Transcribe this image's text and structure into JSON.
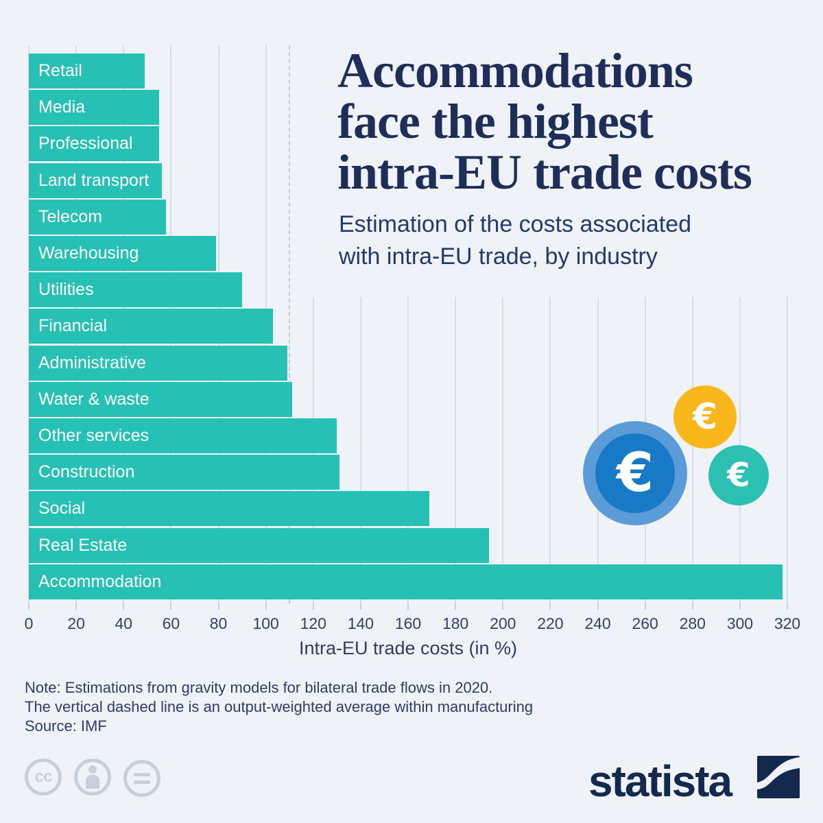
{
  "header": {
    "title": "Accommodations face the highest intra-EU trade costs",
    "title_lines": [
      "Accommodations",
      "face the highest",
      "intra-EU trade costs"
    ],
    "subtitle": "Estimation of the costs associated with intra-EU trade, by industry",
    "subtitle_lines": [
      "Estimation of the costs associated",
      "with intra-EU trade, by industry"
    ]
  },
  "chart_data": {
    "type": "bar",
    "orientation": "horizontal",
    "title": "Accommodations face the highest intra-EU trade costs",
    "subtitle": "Estimation of the costs associated with intra-EU trade, by industry",
    "categories": [
      "Retail",
      "Media",
      "Professional",
      "Land transport",
      "Telecom",
      "Warehousing",
      "Utilities",
      "Financial",
      "Administrative",
      "Water & waste",
      "Other services",
      "Construction",
      "Social",
      "Real Estate",
      "Accommodation"
    ],
    "values": [
      49,
      55,
      55,
      56,
      58,
      79,
      90,
      103,
      109,
      111,
      130,
      131,
      169,
      194,
      318
    ],
    "xlabel": "Intra-EU trade costs (in %)",
    "xlim": [
      0,
      320
    ],
    "xticks": [
      0,
      20,
      40,
      60,
      80,
      100,
      120,
      140,
      160,
      180,
      200,
      220,
      240,
      260,
      280,
      300,
      320
    ],
    "average_line": 110,
    "grid": true,
    "legend": false,
    "bar_color": "#27c0b5",
    "gridline_color": "#d7dde6",
    "bar_label_color": "#ffffff"
  },
  "notes": {
    "note_line1": "Note: Estimations from gravity models for bilateral trade flows in 2020.",
    "note_line2": "The vertical dashed line is an output-weighted average within manufacturing",
    "source": "Source: IMF"
  },
  "branding": {
    "logo_text": "statista",
    "cc_label": "cc"
  },
  "illustration": {
    "euro_symbol": "€",
    "coin_blue_outer": "#5b9bd8",
    "coin_blue_inner": "#187ac6",
    "coin_yellow": "#f9b71c",
    "coin_teal": "#2cc0b3"
  },
  "colors": {
    "background": "#eff3f8",
    "title": "#1e2e58",
    "text": "#2e3c64",
    "axis_labels": "#32406b"
  }
}
